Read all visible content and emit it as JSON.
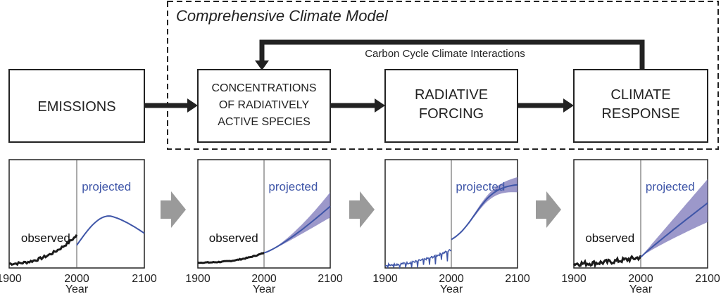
{
  "model": {
    "title": "Comprehensive Climate Model"
  },
  "cycle": {
    "label": "Carbon Cycle Climate Interactions"
  },
  "boxes": [
    {
      "lines": [
        "EMISSIONS"
      ]
    },
    {
      "lines": [
        "CONCENTRATIONS",
        "OF RADIATIVELY",
        "ACTIVE SPECIES"
      ]
    },
    {
      "lines": [
        "RADIATIVE",
        "FORCING"
      ]
    },
    {
      "lines": [
        "CLIMATE",
        "RESPONSE"
      ]
    }
  ],
  "colors": {
    "observed": "#1a1a1a",
    "projected": "#3f56a8",
    "band": "#7b76b8"
  },
  "panels": [
    {
      "observed_label": "observed",
      "projected_label": "projected",
      "x_ticks": [
        "1900",
        "2000",
        "2100"
      ],
      "xlabel": "Year"
    },
    {
      "observed_label": "observed",
      "projected_label": "projected",
      "x_ticks": [
        "1900",
        "2000",
        "2100"
      ],
      "xlabel": "Year"
    },
    {
      "observed_label": "",
      "projected_label": "projected",
      "x_ticks": [
        "1900",
        "2000",
        "2100"
      ],
      "xlabel": "Year"
    },
    {
      "observed_label": "observed",
      "projected_label": "projected",
      "x_ticks": [
        "1900",
        "2000",
        "2100"
      ],
      "xlabel": "Year"
    }
  ]
}
